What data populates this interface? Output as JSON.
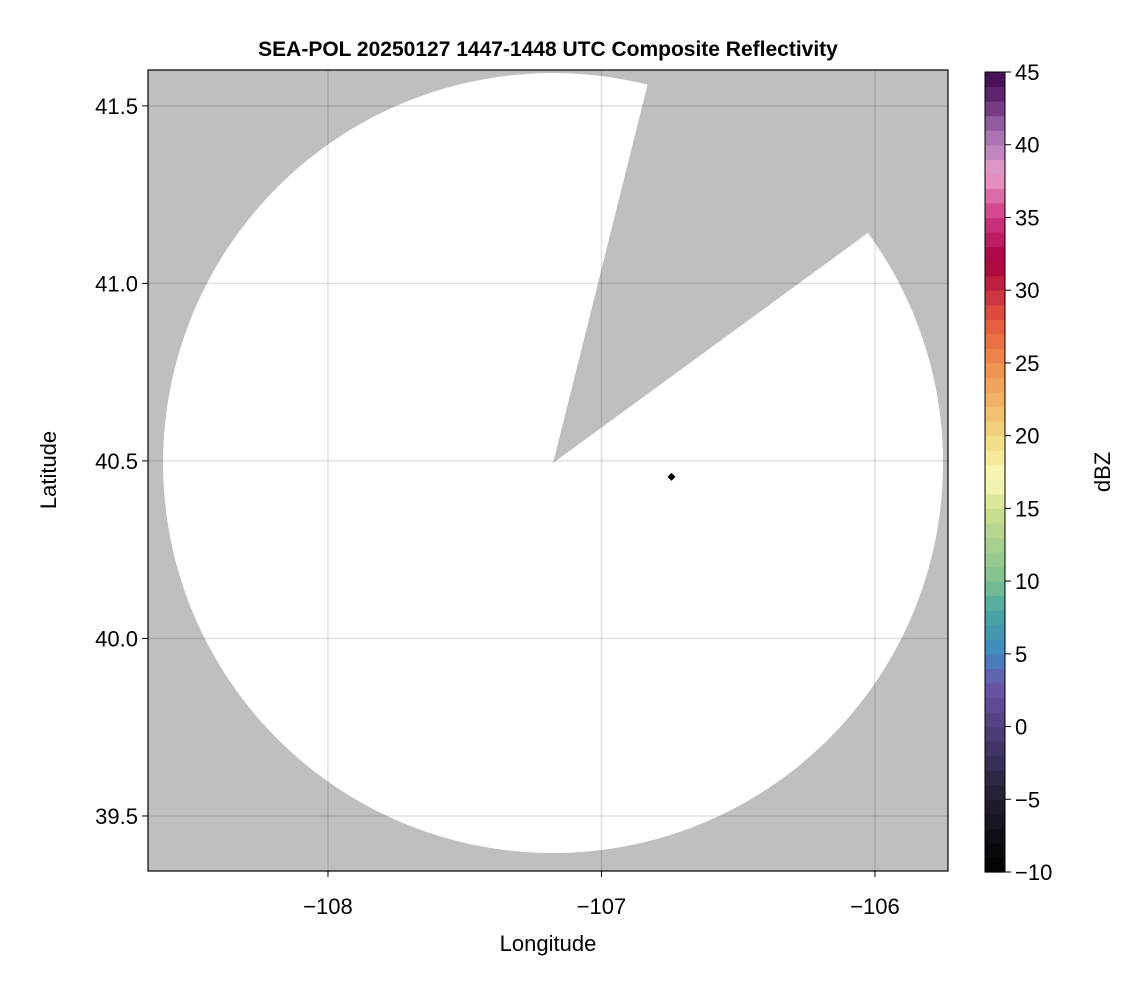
{
  "chart_data": {
    "type": "heatmap",
    "title": "SEA-POL 20250127 1447-1448 UTC Composite Reflectivity",
    "xlabel": "Longitude",
    "ylabel": "Latitude",
    "xlim": [
      -108.658,
      -105.733
    ],
    "ylim": [
      39.345,
      41.601
    ],
    "xticks": [
      -108,
      -107,
      -106
    ],
    "xtick_labels": [
      "−108",
      "−107",
      "−106"
    ],
    "yticks": [
      39.5,
      40.0,
      40.5,
      41.0,
      41.5
    ],
    "ytick_labels": [
      "39.5",
      "40.0",
      "40.5",
      "41.0",
      "41.5"
    ],
    "grid": true,
    "background_color": "#bfbfbf",
    "coverage_color": "#ffffff",
    "radar_center": {
      "lon": -107.177,
      "lat": 40.494
    },
    "blocked_sector_edges": [
      {
        "lon": -106.841,
        "lat": 41.53
      },
      {
        "lon": -106.058,
        "lat": 41.124
      }
    ],
    "marker": {
      "lon": -106.744,
      "lat": 40.455,
      "shape": "diamond",
      "color": "#000000"
    },
    "reflectivity_values": [],
    "colorbar": {
      "label": "dBZ",
      "range": [
        -10,
        45
      ],
      "step": 1,
      "ticks": [
        -10,
        -5,
        0,
        5,
        10,
        15,
        20,
        25,
        30,
        35,
        40,
        45
      ],
      "tick_labels": [
        "−10",
        "−5",
        "0",
        "5",
        "10",
        "15",
        "20",
        "25",
        "30",
        "35",
        "40",
        "45"
      ],
      "color_stops": [
        [
          -10,
          "#000000"
        ],
        [
          -5,
          "#231c30"
        ],
        [
          0,
          "#4f3f7d"
        ],
        [
          3,
          "#6a58a8"
        ],
        [
          5,
          "#3f88c0"
        ],
        [
          8,
          "#4ca6a0"
        ],
        [
          10,
          "#7dc08f"
        ],
        [
          15,
          "#d0e08f"
        ],
        [
          17,
          "#fafabb"
        ],
        [
          20,
          "#f2d880"
        ],
        [
          25,
          "#ef8c4c"
        ],
        [
          28,
          "#e4563e"
        ],
        [
          32,
          "#a7003f"
        ],
        [
          35,
          "#d03784"
        ],
        [
          38,
          "#e8a0cc"
        ],
        [
          41,
          "#9d6aad"
        ],
        [
          43,
          "#6b2c7a"
        ],
        [
          45,
          "#3c0a4a"
        ]
      ]
    }
  }
}
